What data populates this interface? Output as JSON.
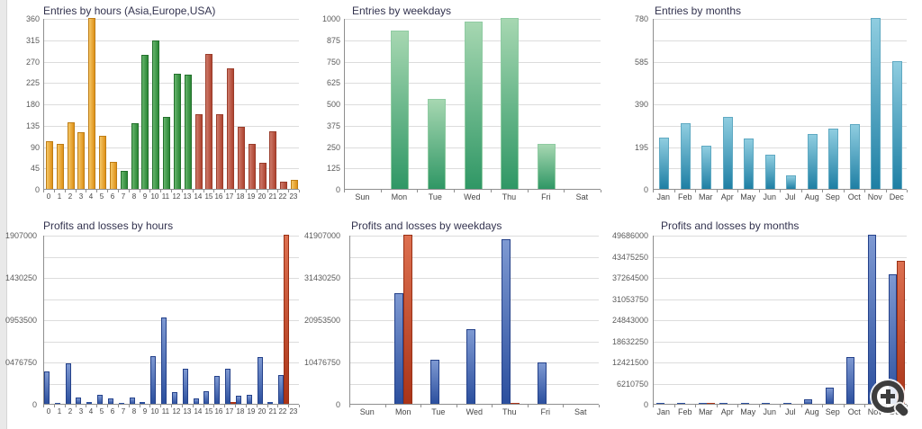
{
  "window": {
    "background": "#ffffff",
    "left_edge_color": "#e9e9e9"
  },
  "zoom_control": {
    "icon": "magnifier-plus-icon",
    "color": "#3d3d3d"
  },
  "chart_data": [
    {
      "id": "entries-by-hours",
      "type": "bar",
      "title": "Entries by hours (Asia,Europe,USA)",
      "xlabel": "",
      "ylabel": "",
      "ylim": [
        0,
        360
      ],
      "y_divisions": 8,
      "grid": true,
      "legend": "none",
      "y_tick_labels": [
        {
          "value": 0,
          "text": "0"
        },
        {
          "value": 45,
          "text": "45"
        },
        {
          "value": 90,
          "text": "90"
        },
        {
          "value": 135,
          "text": "135"
        },
        {
          "value": 180,
          "text": "180"
        },
        {
          "value": 225,
          "text": "225"
        },
        {
          "value": 270,
          "text": "270"
        },
        {
          "value": 315,
          "text": "315"
        },
        {
          "value": 360,
          "text": "360"
        }
      ],
      "categories": [
        "0",
        "1",
        "2",
        "3",
        "4",
        "5",
        "6",
        "7",
        "8",
        "9",
        "10",
        "11",
        "12",
        "13",
        "14",
        "15",
        "16",
        "17",
        "18",
        "19",
        "20",
        "21",
        "22",
        "23"
      ],
      "values": [
        100,
        95,
        140,
        120,
        360,
        112,
        57,
        38,
        138,
        283,
        312,
        152,
        242,
        240,
        157,
        285,
        157,
        253,
        130,
        95,
        55,
        122,
        15,
        18
      ],
      "bar_groups": [
        "asia",
        "asia",
        "asia",
        "asia",
        "asia",
        "asia",
        "asia",
        "europe",
        "europe",
        "europe",
        "europe",
        "europe",
        "europe",
        "europe",
        "usa",
        "usa",
        "usa",
        "usa",
        "usa",
        "usa",
        "usa",
        "usa",
        "usa",
        "asia"
      ],
      "colors": {
        "asia": {
          "light": "#F5C767",
          "dark": "#DE9118",
          "border": "#BE7D15"
        },
        "europe": {
          "light": "#66B46C",
          "dark": "#2B8736",
          "border": "#23702C"
        },
        "usa": {
          "light": "#CE7A6B",
          "dark": "#AE4430",
          "border": "#9A3C2A"
        }
      }
    },
    {
      "id": "entries-by-weekdays",
      "type": "bar",
      "title": "Entries by weekdays",
      "xlabel": "",
      "ylabel": "",
      "ylim": [
        0,
        1000
      ],
      "y_divisions": 8,
      "grid": true,
      "legend": "none",
      "y_tick_labels": [
        {
          "value": 0,
          "text": "0"
        },
        {
          "value": 125,
          "text": "125"
        },
        {
          "value": 250,
          "text": "250"
        },
        {
          "value": 375,
          "text": "375"
        },
        {
          "value": 500,
          "text": "500"
        },
        {
          "value": 625,
          "text": "625"
        },
        {
          "value": 750,
          "text": "750"
        },
        {
          "value": 875,
          "text": "875"
        },
        {
          "value": 1000,
          "text": "1000"
        }
      ],
      "categories": [
        "Sun",
        "Mon",
        "Tue",
        "Wed",
        "Thu",
        "Fri",
        "Sat"
      ],
      "values": [
        0,
        925,
        525,
        980,
        1000,
        265,
        0
      ],
      "color": {
        "light": "#A6D7B1",
        "dark": "#2F9765",
        "border": "#8FCBA2"
      }
    },
    {
      "id": "entries-by-months",
      "type": "bar",
      "title": "Entries by months",
      "xlabel": "",
      "ylabel": "",
      "ylim": [
        0,
        780
      ],
      "y_divisions": 8,
      "grid": true,
      "legend": "none",
      "y_tick_labels": [
        {
          "value": 0,
          "text": "0"
        },
        {
          "value": 195,
          "text": "195"
        },
        {
          "value": 390,
          "text": "390"
        },
        {
          "value": 585,
          "text": "585"
        },
        {
          "value": 780,
          "text": "780"
        }
      ],
      "categories": [
        "Jan",
        "Feb",
        "Mar",
        "Apr",
        "May",
        "Jun",
        "Jul",
        "Aug",
        "Sep",
        "Oct",
        "Nov",
        "Dec"
      ],
      "values": [
        233,
        300,
        198,
        330,
        230,
        155,
        63,
        250,
        275,
        295,
        780,
        583
      ],
      "color": {
        "light": "#8FCDE0",
        "dark": "#1E7FA4",
        "border": "#5FA9C2"
      }
    },
    {
      "id": "profits-and-losses-by-hours",
      "type": "bar",
      "title": "Profits and losses by hours",
      "xlabel": "",
      "ylabel": "",
      "ylim": [
        0,
        41907000
      ],
      "y_divisions": 8,
      "grid": true,
      "legend": "none",
      "y_tick_labels": [
        {
          "value": 0,
          "text": "0"
        },
        {
          "value": 10476750,
          "text": "0476750"
        },
        {
          "value": 20953500,
          "text": "0953500"
        },
        {
          "value": 31430250,
          "text": "1430250"
        },
        {
          "value": 41907000,
          "text": "1907000"
        }
      ],
      "categories": [
        "0",
        "1",
        "2",
        "3",
        "4",
        "5",
        "6",
        "7",
        "8",
        "9",
        "10",
        "11",
        "12",
        "13",
        "14",
        "15",
        "16",
        "17",
        "18",
        "19",
        "20",
        "21",
        "22",
        "23"
      ],
      "series": [
        {
          "name": "profit",
          "color": {
            "light": "#7E99D2",
            "dark": "#2B4F9E",
            "border": "#24418A"
          },
          "values": [
            8100000,
            200000,
            9950000,
            1500000,
            500000,
            2200000,
            1300000,
            300000,
            1600000,
            400000,
            11800000,
            21500000,
            2800000,
            8600000,
            1400000,
            3200000,
            6900000,
            8700000,
            1900000,
            2200000,
            11700000,
            500000,
            7100000,
            0
          ]
        },
        {
          "name": "loss",
          "color": {
            "light": "#DD7050",
            "dark": "#AA3418",
            "border": "#993015"
          },
          "values": [
            0,
            0,
            0,
            0,
            0,
            0,
            0,
            0,
            0,
            0,
            0,
            0,
            0,
            0,
            0,
            0,
            0,
            500000,
            0,
            0,
            0,
            0,
            41907000,
            0
          ]
        }
      ]
    },
    {
      "id": "profits-and-losses-by-weekdays",
      "type": "bar",
      "title": "Profits and losses by weekdays",
      "xlabel": "",
      "ylabel": "",
      "ylim": [
        0,
        41907000
      ],
      "y_divisions": 8,
      "grid": true,
      "legend": "none",
      "y_tick_labels": [
        {
          "value": 0,
          "text": "0"
        },
        {
          "value": 10476750,
          "text": "10476750"
        },
        {
          "value": 20953500,
          "text": "20953500"
        },
        {
          "value": 31430250,
          "text": "31430250"
        },
        {
          "value": 41907000,
          "text": "41907000"
        }
      ],
      "categories": [
        "Sun",
        "Mon",
        "Tue",
        "Wed",
        "Thu",
        "Fri",
        "Sat"
      ],
      "series": [
        {
          "name": "profit",
          "color": {
            "light": "#7E99D2",
            "dark": "#2B4F9E",
            "border": "#24418A"
          },
          "values": [
            0,
            27400000,
            10900000,
            18600000,
            40800000,
            10200000,
            0
          ]
        },
        {
          "name": "loss",
          "color": {
            "light": "#DD7050",
            "dark": "#AA3418",
            "border": "#993015"
          },
          "values": [
            0,
            41907000,
            0,
            0,
            300000,
            0,
            0
          ]
        }
      ]
    },
    {
      "id": "profits-and-losses-by-months",
      "type": "bar",
      "title": "Profits and losses by months",
      "xlabel": "",
      "ylabel": "",
      "ylim": [
        0,
        49686000
      ],
      "y_divisions": 8,
      "grid": true,
      "legend": "none",
      "y_tick_labels": [
        {
          "value": 0,
          "text": "0"
        },
        {
          "value": 6210750,
          "text": "6210750"
        },
        {
          "value": 12421500,
          "text": "12421500"
        },
        {
          "value": 18632250,
          "text": "18632250"
        },
        {
          "value": 24843000,
          "text": "24843000"
        },
        {
          "value": 31053750,
          "text": "31053750"
        },
        {
          "value": 37264500,
          "text": "37264500"
        },
        {
          "value": 43475250,
          "text": "43475250"
        },
        {
          "value": 49686000,
          "text": "49686000"
        }
      ],
      "categories": [
        "Jan",
        "Feb",
        "Mar",
        "Apr",
        "May",
        "Jun",
        "Jul",
        "Aug",
        "Sep",
        "Oct",
        "Nov",
        "Dec"
      ],
      "series": [
        {
          "name": "profit",
          "color": {
            "light": "#7E99D2",
            "dark": "#2B4F9E",
            "border": "#24418A"
          },
          "values": [
            150000,
            200000,
            250000,
            150000,
            200000,
            150000,
            100000,
            1200000,
            4700000,
            13800000,
            49686000,
            38100000
          ]
        },
        {
          "name": "loss",
          "color": {
            "light": "#DD7050",
            "dark": "#AA3418",
            "border": "#993015"
          },
          "values": [
            0,
            0,
            250000,
            0,
            0,
            0,
            0,
            0,
            0,
            0,
            0,
            42100000
          ]
        }
      ]
    }
  ]
}
